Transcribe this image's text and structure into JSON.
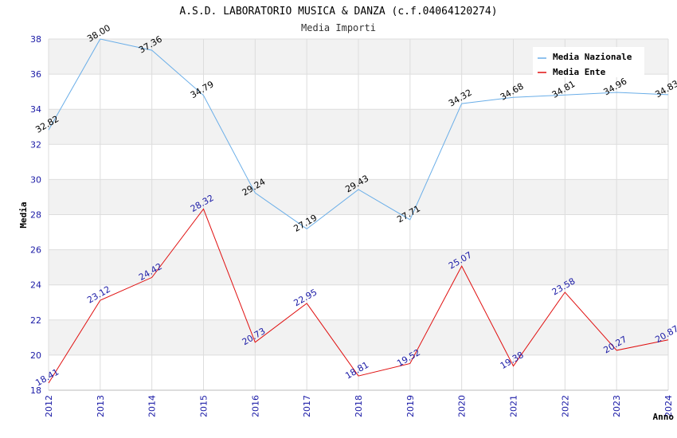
{
  "chart_data": {
    "type": "line",
    "title": "A.S.D. LABORATORIO MUSICA & DANZA (c.f.04064120274)",
    "subtitle": "Media Importi",
    "xlabel": "Anno",
    "ylabel": "Media",
    "x": [
      "2012",
      "2013",
      "2014",
      "2015",
      "2016",
      "2017",
      "2018",
      "2019",
      "2020",
      "2021",
      "2022",
      "2023",
      "2024"
    ],
    "ylim": [
      18,
      38
    ],
    "yticks": [
      18,
      20,
      22,
      24,
      26,
      28,
      30,
      32,
      34,
      36,
      38
    ],
    "grid": true,
    "legend_position": "top-right",
    "series": [
      {
        "name": "Media Nazionale",
        "color": "#6aaee8",
        "label_color": "#000000",
        "values": [
          32.82,
          38.0,
          37.36,
          34.79,
          29.24,
          27.19,
          29.43,
          27.71,
          34.32,
          34.68,
          34.81,
          34.96,
          34.83
        ],
        "labels": [
          "32.82",
          "38.00",
          "37.36",
          "34.79",
          "29.24",
          "27.19",
          "29.43",
          "27.71",
          "34.32",
          "34.68",
          "34.81",
          "34.96",
          "34.83"
        ]
      },
      {
        "name": "Media Ente",
        "color": "#e01010",
        "label_color": "#1a1aa6",
        "values": [
          18.41,
          23.12,
          24.42,
          28.32,
          20.73,
          22.95,
          18.81,
          19.52,
          25.07,
          19.38,
          23.58,
          20.27,
          20.87
        ],
        "labels": [
          "18.41",
          "23.12",
          "24.42",
          "28.32",
          "20.73",
          "22.95",
          "18.81",
          "19.52",
          "25.07",
          "19.38",
          "23.58",
          "20.27",
          "20.87"
        ]
      }
    ]
  }
}
